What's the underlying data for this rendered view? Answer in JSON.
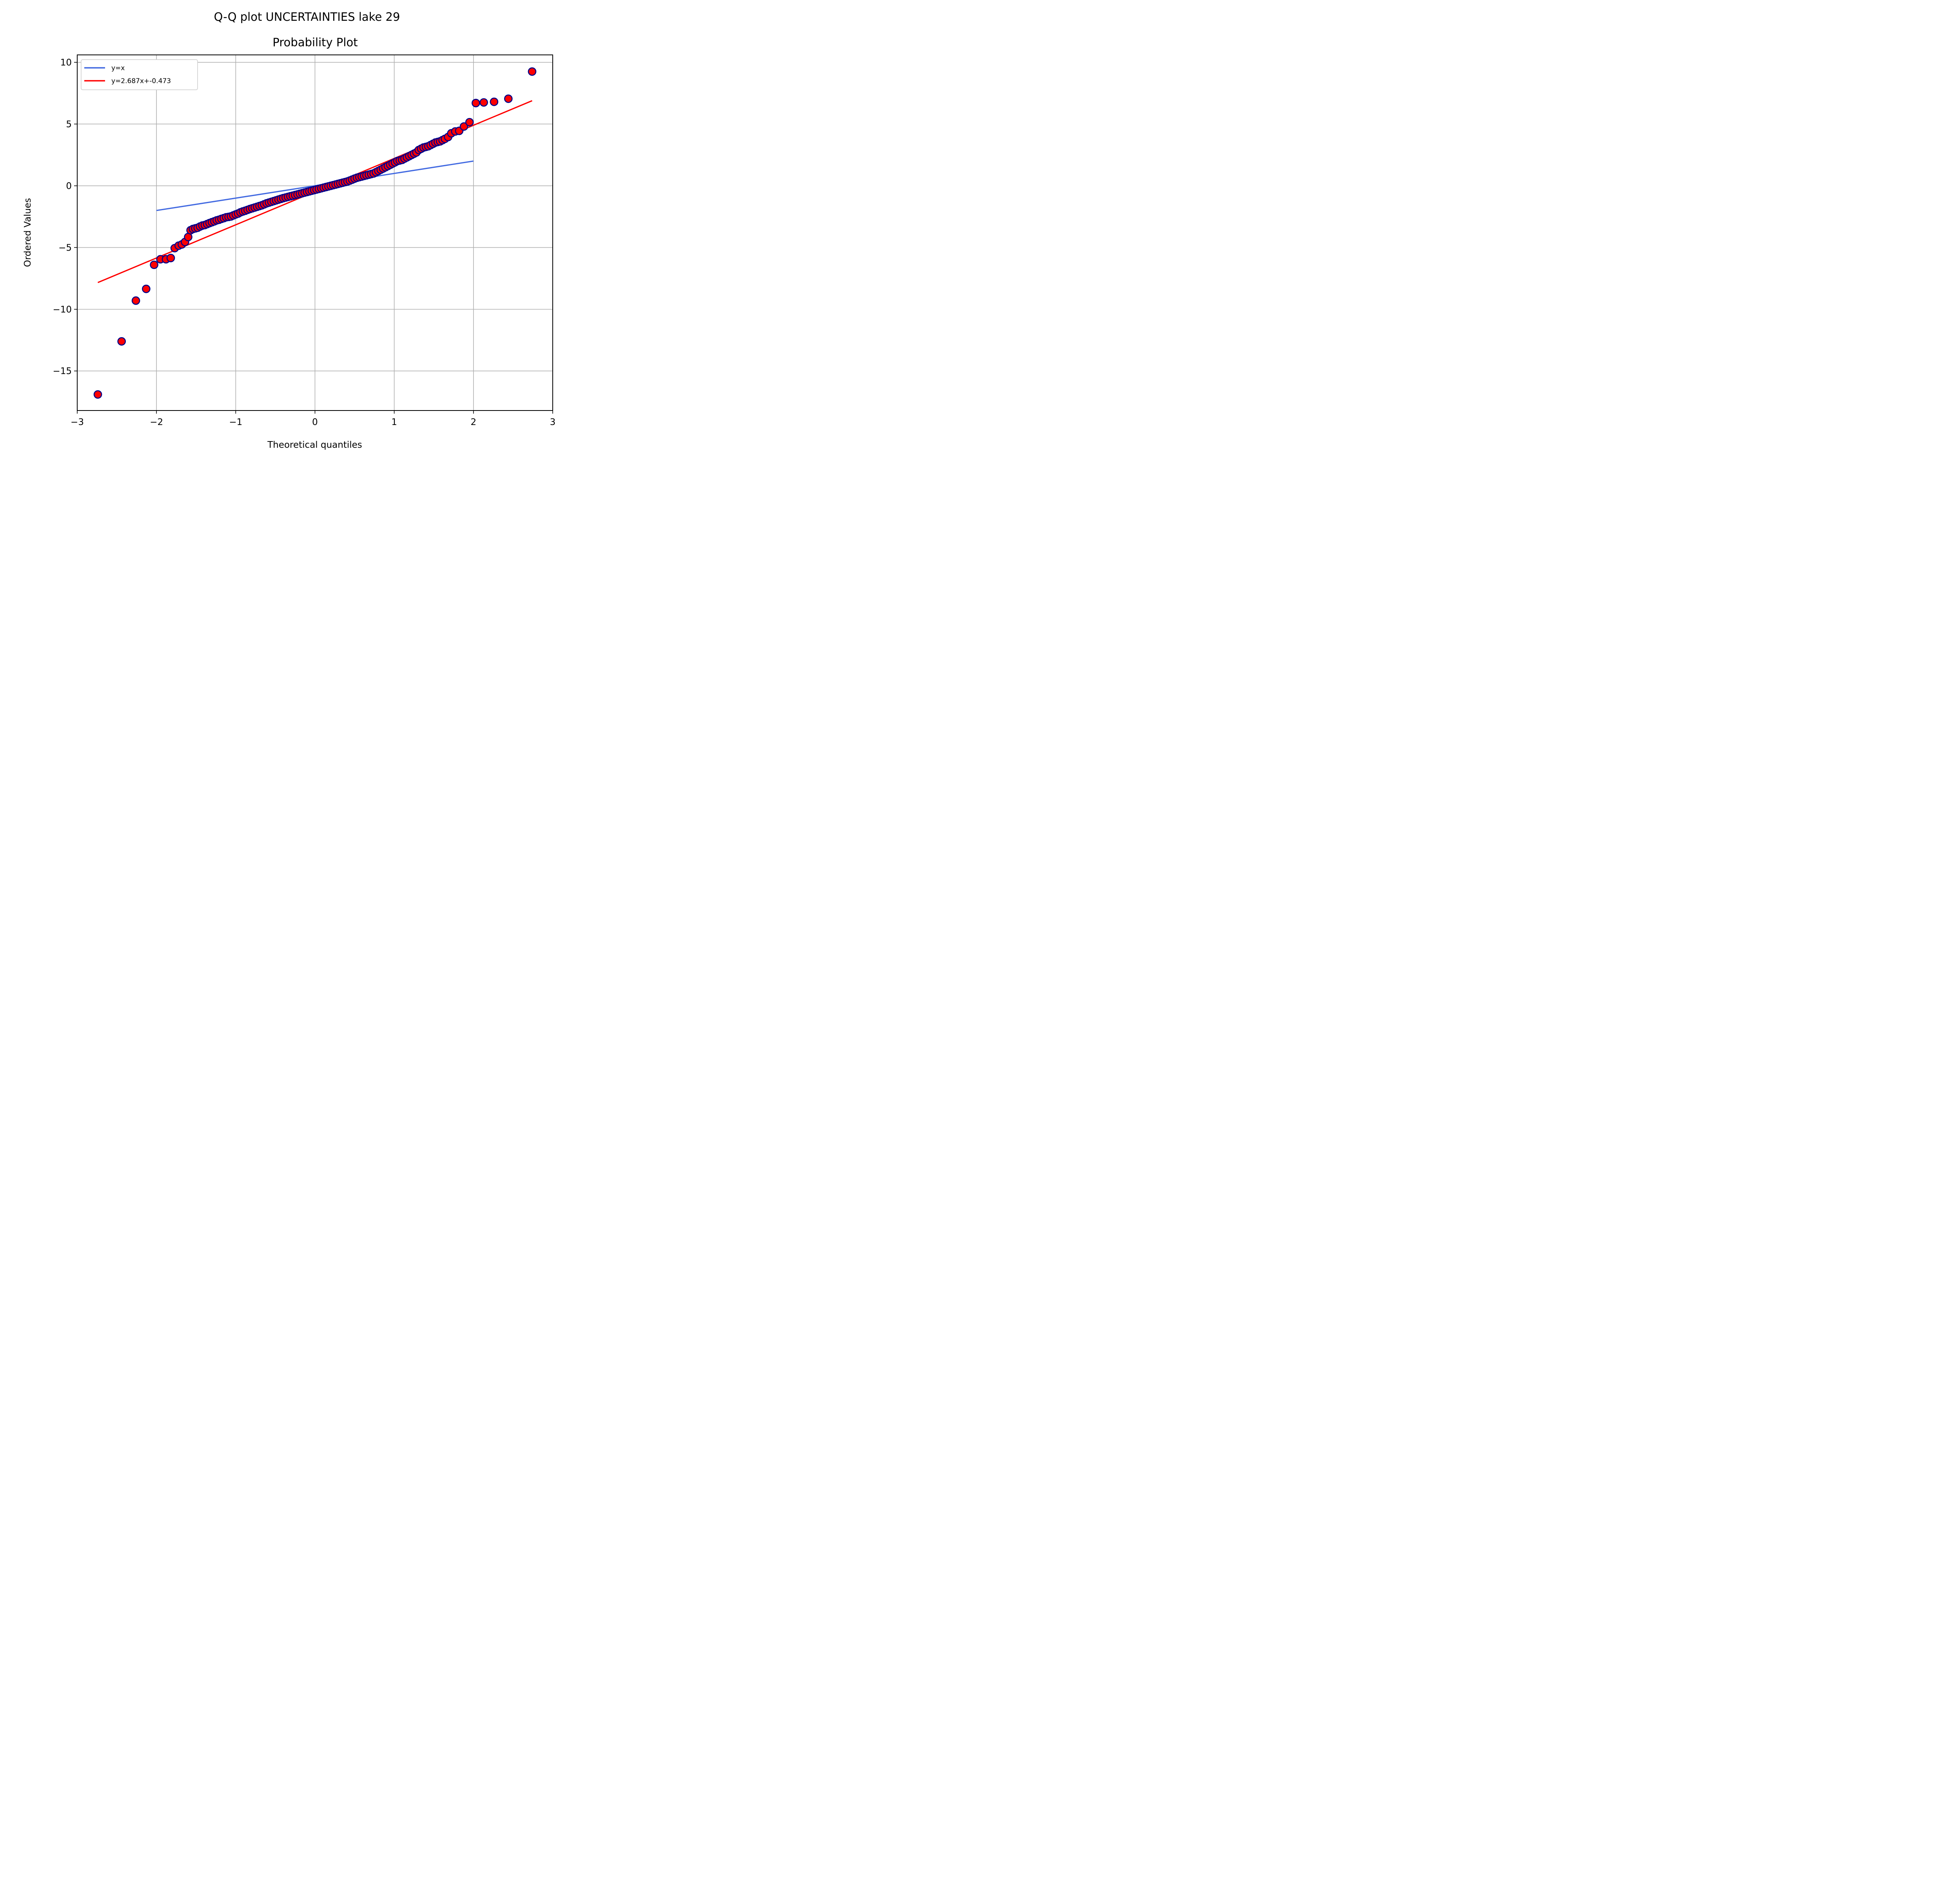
{
  "chart_data": {
    "type": "scatter",
    "suptitle": "Q-Q plot UNCERTAINTIES lake 29",
    "title": "Probability Plot",
    "xlabel": "Theoretical quantiles",
    "ylabel": "Ordered Values",
    "xlim": [
      -3.0,
      3.0
    ],
    "ylim": [
      -18.2,
      10.6
    ],
    "xticks": [
      -3,
      -2,
      -1,
      0,
      1,
      2,
      3
    ],
    "xtick_labels": [
      "−3",
      "−2",
      "−1",
      "0",
      "1",
      "2",
      "3"
    ],
    "yticks": [
      10,
      5,
      0,
      -5,
      -10,
      -15
    ],
    "ytick_labels": [
      "10",
      "5",
      "0",
      "−5",
      "−10",
      "−15"
    ],
    "grid": true,
    "legend_position": "upper left",
    "lines": [
      {
        "name": "y=x",
        "color": "#4169e1",
        "x": [
          -2.0,
          2.0
        ],
        "y": [
          -2.0,
          2.0
        ]
      },
      {
        "name": "y=2.687x+-0.473",
        "color": "#ff0000",
        "x": [
          -2.74,
          2.74
        ],
        "y": [
          -7.835,
          6.889
        ]
      }
    ],
    "points": {
      "fill": "#ff0000",
      "edge": "#00008b",
      "x": [
        -2.74,
        -2.44,
        -2.26,
        -2.13,
        -2.03,
        -1.95,
        -1.88,
        -1.82,
        -1.77,
        -1.72,
        -1.68,
        -1.64,
        -1.6,
        -1.57,
        -1.54,
        -1.51,
        -1.48,
        -1.45,
        -1.42,
        -1.39,
        -1.36,
        -1.33,
        -1.3,
        -1.27,
        -1.24,
        -1.21,
        -1.18,
        -1.15,
        -1.12,
        -1.09,
        -1.06,
        -1.03,
        -1.0,
        -0.97,
        -0.94,
        -0.91,
        -0.88,
        -0.85,
        -0.82,
        -0.79,
        -0.76,
        -0.73,
        -0.7,
        -0.67,
        -0.64,
        -0.61,
        -0.58,
        -0.55,
        -0.52,
        -0.49,
        -0.46,
        -0.43,
        -0.4,
        -0.37,
        -0.34,
        -0.31,
        -0.28,
        -0.25,
        -0.22,
        -0.19,
        -0.16,
        -0.13,
        -0.1,
        -0.07,
        -0.04,
        -0.01,
        0.02,
        0.05,
        0.08,
        0.11,
        0.14,
        0.17,
        0.2,
        0.23,
        0.26,
        0.29,
        0.32,
        0.35,
        0.38,
        0.41,
        0.44,
        0.47,
        0.5,
        0.53,
        0.56,
        0.59,
        0.62,
        0.65,
        0.68,
        0.71,
        0.74,
        0.77,
        0.8,
        0.83,
        0.86,
        0.89,
        0.92,
        0.95,
        0.98,
        1.01,
        1.04,
        1.07,
        1.1,
        1.13,
        1.16,
        1.19,
        1.22,
        1.25,
        1.28,
        1.31,
        1.34,
        1.37,
        1.4,
        1.43,
        1.46,
        1.49,
        1.52,
        1.55,
        1.58,
        1.61,
        1.64,
        1.68,
        1.72,
        1.77,
        1.82,
        1.88,
        1.95,
        2.03,
        2.13,
        2.26,
        2.44,
        2.74
      ],
      "y": [
        -16.9,
        -12.6,
        -9.3,
        -8.35,
        -6.4,
        -5.95,
        -5.95,
        -5.85,
        -5.05,
        -4.85,
        -4.75,
        -4.55,
        -4.15,
        -3.6,
        -3.5,
        -3.45,
        -3.4,
        -3.3,
        -3.22,
        -3.18,
        -3.1,
        -3.02,
        -2.95,
        -2.88,
        -2.8,
        -2.75,
        -2.68,
        -2.62,
        -2.55,
        -2.52,
        -2.48,
        -2.4,
        -2.32,
        -2.25,
        -2.15,
        -2.08,
        -2.02,
        -1.95,
        -1.88,
        -1.82,
        -1.76,
        -1.7,
        -1.64,
        -1.58,
        -1.5,
        -1.42,
        -1.36,
        -1.3,
        -1.24,
        -1.18,
        -1.12,
        -1.06,
        -1.0,
        -0.95,
        -0.9,
        -0.85,
        -0.8,
        -0.75,
        -0.7,
        -0.65,
        -0.6,
        -0.55,
        -0.5,
        -0.45,
        -0.4,
        -0.35,
        -0.3,
        -0.25,
        -0.2,
        -0.15,
        -0.1,
        -0.05,
        0.0,
        0.05,
        0.1,
        0.15,
        0.2,
        0.25,
        0.3,
        0.35,
        0.42,
        0.5,
        0.58,
        0.65,
        0.7,
        0.75,
        0.8,
        0.85,
        0.9,
        0.95,
        1.0,
        1.1,
        1.2,
        1.3,
        1.4,
        1.5,
        1.6,
        1.7,
        1.8,
        1.9,
        2.0,
        2.05,
        2.1,
        2.2,
        2.3,
        2.4,
        2.5,
        2.6,
        2.7,
        2.9,
        3.0,
        3.1,
        3.15,
        3.2,
        3.3,
        3.4,
        3.5,
        3.55,
        3.6,
        3.7,
        3.8,
        3.95,
        4.25,
        4.4,
        4.45,
        4.8,
        5.15,
        6.7,
        6.75,
        6.8,
        7.05,
        9.25
      ]
    },
    "colors": {
      "point_fill": "#ff0000",
      "point_edge": "#00008b",
      "identity_line": "#4169e1",
      "fit_line": "#ff0000",
      "grid": "#b0b0b0"
    }
  }
}
